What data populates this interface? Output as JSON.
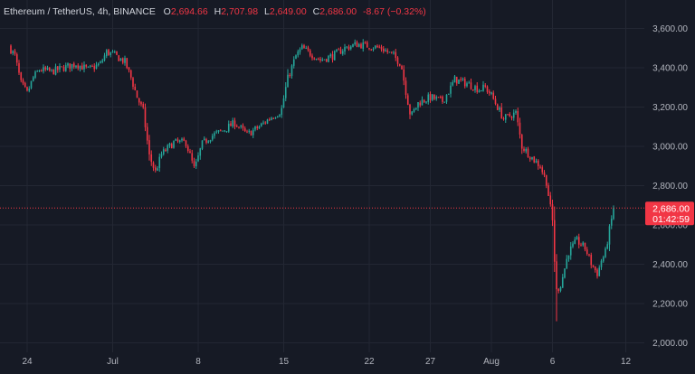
{
  "legend": {
    "symbol": "Ethereum / TetherUS, 4h, BINANCE",
    "open_key": "O",
    "open": "2,694.66",
    "high_key": "H",
    "high": "2,707.98",
    "low_key": "L",
    "low": "2,649.00",
    "close_key": "C",
    "close": "2,686.00",
    "change": "-8.67 (−0.32%)"
  },
  "price_box": {
    "price": "2,686.00",
    "countdown": "01:42:59",
    "value": 2686
  },
  "colors": {
    "background": "#161a25",
    "grid": "#232733",
    "axis_text": "#b2b5be",
    "up": "#26a69a",
    "down": "#f23645",
    "price_line": "#f23645"
  },
  "chart_data": {
    "type": "candlestick",
    "timeframe": "4h",
    "ylim": [
      1960,
      3700
    ],
    "grid": true,
    "y_ticks": [
      {
        "value": 3600,
        "label": "3,600.00"
      },
      {
        "value": 3400,
        "label": "3,400.00"
      },
      {
        "value": 3200,
        "label": "3,200.00"
      },
      {
        "value": 3000,
        "label": "3,000.00"
      },
      {
        "value": 2800,
        "label": "2,800.00"
      },
      {
        "value": 2600,
        "label": "2,600.00"
      },
      {
        "value": 2400,
        "label": "2,400.00"
      },
      {
        "value": 2200,
        "label": "2,200.00"
      },
      {
        "value": 2000,
        "label": "2,000.00"
      }
    ],
    "x_ticks": [
      {
        "label": "24",
        "t": 0
      },
      {
        "label": "Jul",
        "t": 7
      },
      {
        "label": "8",
        "t": 14
      },
      {
        "label": "15",
        "t": 21
      },
      {
        "label": "22",
        "t": 28
      },
      {
        "label": "27",
        "t": 33
      },
      {
        "label": "Aug",
        "t": 38
      },
      {
        "label": "6",
        "t": 43
      },
      {
        "label": "12",
        "t": 49
      }
    ],
    "path": [
      [
        -1.5,
        3510
      ],
      [
        -1.0,
        3460
      ],
      [
        -0.5,
        3320
      ],
      [
        0.0,
        3270
      ],
      [
        0.5,
        3350
      ],
      [
        1.0,
        3390
      ],
      [
        2.0,
        3380
      ],
      [
        3.0,
        3400
      ],
      [
        4.0,
        3420
      ],
      [
        5.0,
        3390
      ],
      [
        6.0,
        3420
      ],
      [
        6.5,
        3480
      ],
      [
        7.0,
        3470
      ],
      [
        8.0,
        3430
      ],
      [
        8.5,
        3350
      ],
      [
        9.0,
        3250
      ],
      [
        9.5,
        3180
      ],
      [
        10.0,
        2950
      ],
      [
        10.5,
        2870
      ],
      [
        11.0,
        2960
      ],
      [
        12.0,
        3020
      ],
      [
        13.0,
        3020
      ],
      [
        13.7,
        2880
      ],
      [
        14.3,
        3010
      ],
      [
        15.0,
        3050
      ],
      [
        16.0,
        3080
      ],
      [
        17.0,
        3120
      ],
      [
        18.0,
        3060
      ],
      [
        19.0,
        3100
      ],
      [
        20.0,
        3150
      ],
      [
        20.8,
        3180
      ],
      [
        21.3,
        3340
      ],
      [
        22.0,
        3460
      ],
      [
        22.5,
        3500
      ],
      [
        23.0,
        3480
      ],
      [
        24.0,
        3440
      ],
      [
        25.0,
        3460
      ],
      [
        26.0,
        3500
      ],
      [
        27.0,
        3520
      ],
      [
        28.0,
        3510
      ],
      [
        29.0,
        3500
      ],
      [
        30.0,
        3460
      ],
      [
        30.6,
        3420
      ],
      [
        31.0,
        3280
      ],
      [
        31.4,
        3150
      ],
      [
        32.0,
        3220
      ],
      [
        33.0,
        3250
      ],
      [
        34.0,
        3230
      ],
      [
        34.6,
        3290
      ],
      [
        35.0,
        3340
      ],
      [
        36.0,
        3320
      ],
      [
        37.0,
        3290
      ],
      [
        37.5,
        3300
      ],
      [
        38.0,
        3260
      ],
      [
        39.0,
        3140
      ],
      [
        40.0,
        3170
      ],
      [
        40.5,
        3000
      ],
      [
        41.5,
        2930
      ],
      [
        42.0,
        2900
      ],
      [
        42.5,
        2820
      ],
      [
        43.0,
        2620
      ],
      [
        43.3,
        2260
      ],
      [
        43.7,
        2300
      ],
      [
        44.3,
        2460
      ],
      [
        45.0,
        2520
      ],
      [
        45.7,
        2480
      ],
      [
        46.2,
        2400
      ],
      [
        46.7,
        2350
      ],
      [
        47.0,
        2420
      ],
      [
        47.3,
        2450
      ],
      [
        47.8,
        2620
      ],
      [
        48.1,
        2686
      ]
    ]
  }
}
